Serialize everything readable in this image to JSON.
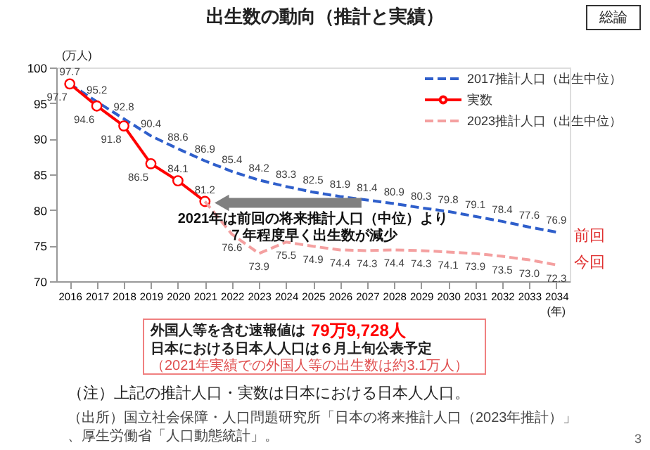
{
  "chart_data": {
    "type": "line",
    "title": "出生数の動向（推計と実績）",
    "ylabel": "(万人)",
    "xlabel": "(年)",
    "categories": [
      "2016",
      "2017",
      "2018",
      "2019",
      "2020",
      "2021",
      "2022",
      "2023",
      "2024",
      "2025",
      "2026",
      "2027",
      "2028",
      "2029",
      "2030",
      "2031",
      "2032",
      "2033",
      "2034"
    ],
    "series": [
      {
        "name": "2017推計人口（出生中位）",
        "color": "#2f5fcb",
        "line_style": "dashed",
        "marker": "none",
        "values": [
          97.7,
          95.2,
          92.8,
          90.4,
          88.6,
          86.9,
          85.4,
          84.2,
          83.3,
          82.5,
          81.9,
          81.4,
          80.9,
          80.3,
          79.8,
          79.1,
          78.4,
          77.6,
          76.9
        ]
      },
      {
        "name": "実数",
        "color": "#ff0000",
        "line_style": "solid",
        "marker": "circle",
        "values": [
          97.7,
          94.6,
          91.8,
          86.5,
          84.1,
          81.2,
          null,
          null,
          null,
          null,
          null,
          null,
          null,
          null,
          null,
          null,
          null,
          null,
          null
        ]
      },
      {
        "name": "2023推計人口（出生中位）",
        "color": "#f4a0a0",
        "line_style": "dashed",
        "marker": "none",
        "values": [
          null,
          null,
          null,
          null,
          null,
          81.2,
          76.6,
          73.9,
          75.5,
          74.9,
          74.4,
          74.3,
          74.4,
          74.3,
          74.1,
          73.9,
          73.5,
          73.0,
          72.3
        ],
        "value_labels": [
          null,
          null,
          null,
          null,
          null,
          null,
          "76.6",
          "73.9",
          "75.5",
          "74.9",
          "74.4",
          "74.3",
          "74.4",
          "74.3",
          "74.1",
          "73.9",
          "73.5",
          "73.0",
          "72.3"
        ]
      }
    ],
    "ylim": [
      70,
      100
    ],
    "yticks": [
      70,
      75,
      80,
      85,
      90,
      95,
      100
    ],
    "grid": false,
    "legend": "top right",
    "data_labels": true,
    "annotations": [
      "2021年は前回の将来推計人口（中位）より",
      "７年程度早く出生数が減少",
      "前回",
      "今回",
      "外国人等を含む速報値は",
      "79万9,728人",
      "日本における日本人人口は６月上旬公表予定",
      "（2021年実績での外国人等の出生数は約3.1万人）",
      "（注）上記の推計人口・実数は日本における日本人人口。",
      "（出所）国立社会保障・人口問題研究所「日本の将来推計人口（2023年推計）」、厚生労働省「人口動態統計」。",
      "総論",
      "3"
    ]
  }
}
